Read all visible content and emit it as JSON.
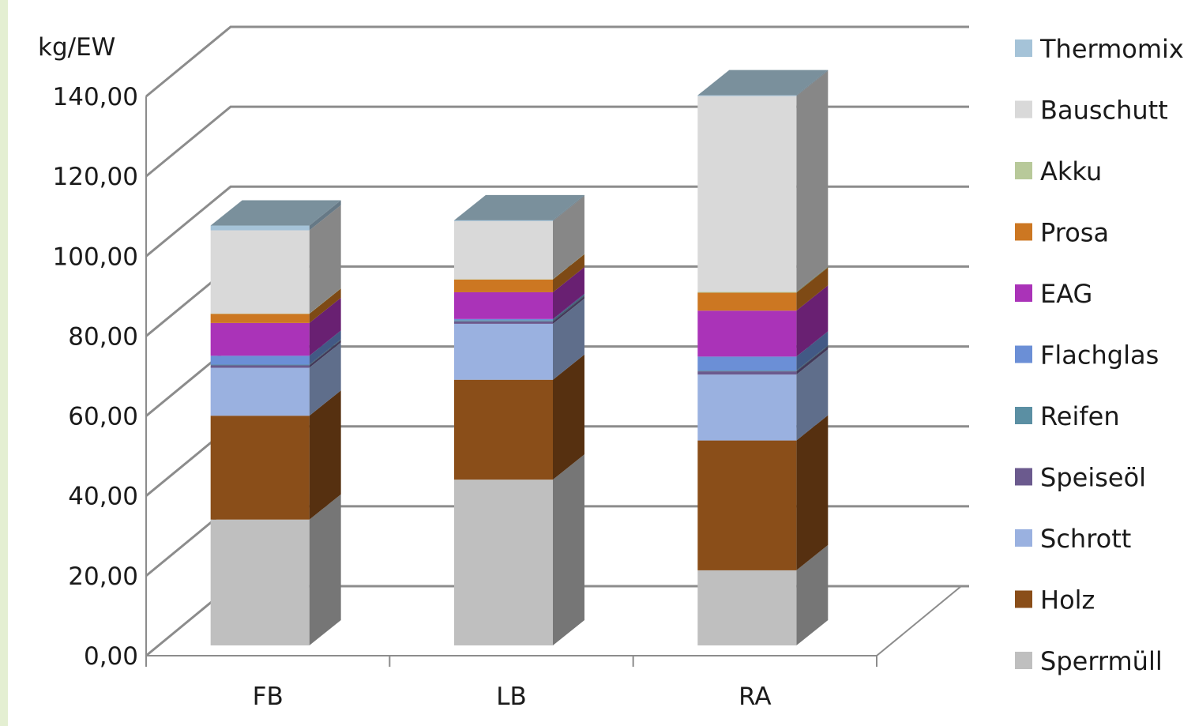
{
  "chart_data": {
    "type": "bar",
    "stacked": true,
    "three_d": true,
    "ylabel": "kg/EW",
    "ylim": [
      0,
      140
    ],
    "yticks": [
      "0,00",
      "20,00",
      "40,00",
      "60,00",
      "80,00",
      "100,00",
      "120,00",
      "140,00"
    ],
    "categories": [
      "FB",
      "LB",
      "RA"
    ],
    "series": [
      {
        "name": "Sperrmüll",
        "color": "#bfbfbf",
        "values": [
          31.5,
          41.5,
          18.8
        ]
      },
      {
        "name": "Holz",
        "color": "#8a4e19",
        "values": [
          26.0,
          25.0,
          32.5
        ]
      },
      {
        "name": "Schrott",
        "color": "#9ab1e0",
        "values": [
          12.0,
          14.0,
          16.5
        ]
      },
      {
        "name": "Speiseöl",
        "color": "#6b5a8e",
        "values": [
          0.6,
          0.6,
          0.8
        ]
      },
      {
        "name": "Reifen",
        "color": "#5b8fa3",
        "values": [
          0.2,
          0.3,
          0.2
        ]
      },
      {
        "name": "Flachglas",
        "color": "#6b8fd6",
        "values": [
          2.2,
          0.3,
          3.5
        ]
      },
      {
        "name": "EAG",
        "color": "#aa33b8",
        "values": [
          8.2,
          6.7,
          11.5
        ]
      },
      {
        "name": "Prosa",
        "color": "#cc7722",
        "values": [
          2.3,
          3.2,
          4.5
        ]
      },
      {
        "name": "Akku",
        "color": "#b8c99a",
        "values": [
          0.1,
          0.1,
          0.2
        ]
      },
      {
        "name": "Bauschutt",
        "color": "#d9d9d9",
        "values": [
          20.8,
          14.5,
          49.0
        ]
      },
      {
        "name": "Thermomix",
        "color": "#a5c3d8",
        "values": [
          1.2,
          0.2,
          0.2
        ]
      }
    ],
    "legend_position": "right",
    "grid": true
  }
}
